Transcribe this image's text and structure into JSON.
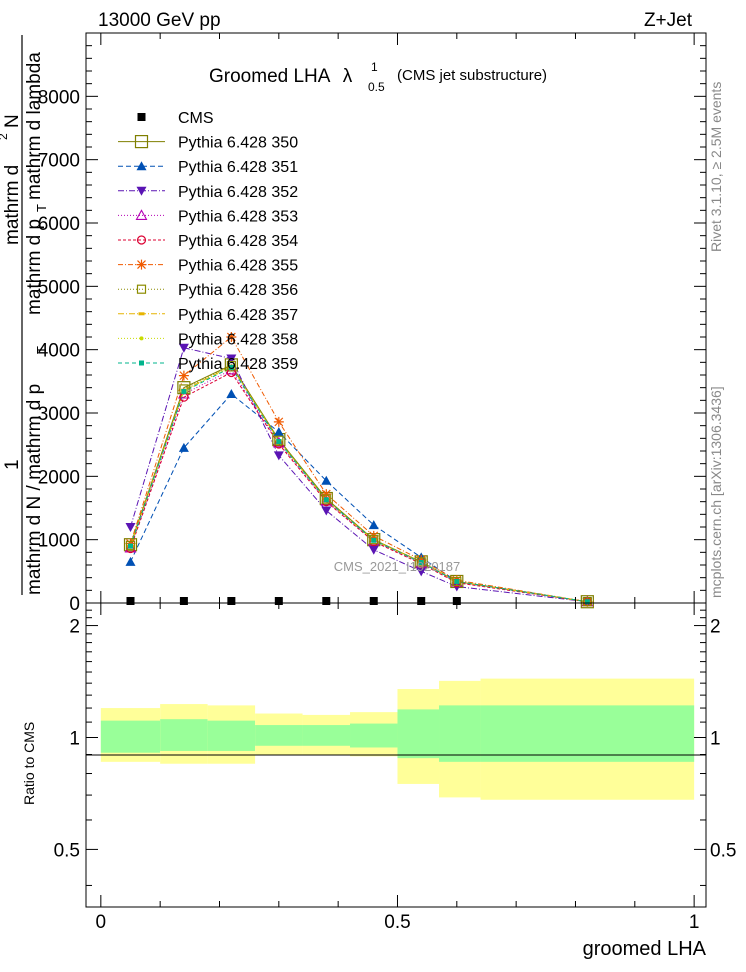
{
  "header": {
    "left": "13000 GeV pp",
    "right": "Z+Jet"
  },
  "side": {
    "rivet": "Rivet 3.1.10, ≥ 2.5M events",
    "mcplots": "mcplots.cern.ch [arXiv:1306.3436]"
  },
  "watermark": "CMS_2021_I1920187",
  "chart_data": {
    "type": "line",
    "title_main": "Groomed LHA",
    "title_lambda": "λ",
    "title_sup": "1",
    "title_sub": "0.5",
    "title_note": "(CMS jet substructure)",
    "ylabel_parts": [
      "1",
      "mathrm d N / mathrm d p",
      "T",
      "mathrm d",
      "2",
      "N",
      "mathrm d p",
      "T",
      "mathrm d lambda"
    ],
    "xlabel": "groomed LHA",
    "ratio_ylabel": "Ratio to CMS",
    "xlim": [
      -0.025,
      1.02
    ],
    "ylim": [
      0,
      9000
    ],
    "ratio_ylim": [
      0.35,
      2.3
    ],
    "x_ticks": [
      0,
      0.5,
      1
    ],
    "x_tick_labels": [
      "0",
      "0.5",
      "1"
    ],
    "y_ticks": [
      0,
      1000,
      2000,
      3000,
      4000,
      5000,
      6000,
      7000,
      8000
    ],
    "y_tick_labels": [
      "0",
      "1000",
      "2000",
      "3000",
      "4000",
      "5000",
      "6000",
      "7000",
      "8000"
    ],
    "ratio_ticks": [
      0.5,
      1,
      2
    ],
    "ratio_tick_labels": [
      "0.5",
      "1",
      "2"
    ],
    "x": [
      0.05,
      0.14,
      0.22,
      0.3,
      0.38,
      0.46,
      0.54,
      0.6,
      0.82
    ],
    "band_edges": [
      0,
      0.1,
      0.18,
      0.26,
      0.34,
      0.42,
      0.5,
      0.57,
      0.64,
      1.0
    ],
    "band_inner": [
      [
        0.91,
        1.11
      ],
      [
        0.92,
        1.12
      ],
      [
        0.92,
        1.11
      ],
      [
        0.95,
        1.08
      ],
      [
        0.95,
        1.08
      ],
      [
        0.94,
        1.09
      ],
      [
        0.88,
        1.19
      ],
      [
        0.86,
        1.22
      ],
      [
        0.86,
        1.22
      ]
    ],
    "band_outer": [
      [
        0.86,
        1.2
      ],
      [
        0.85,
        1.23
      ],
      [
        0.85,
        1.22
      ],
      [
        0.9,
        1.16
      ],
      [
        0.9,
        1.15
      ],
      [
        0.89,
        1.17
      ],
      [
        0.75,
        1.35
      ],
      [
        0.69,
        1.42
      ],
      [
        0.68,
        1.44
      ]
    ],
    "legend_position": "top-left",
    "series": [
      {
        "name": "CMS",
        "color": "#000000",
        "marker": "square-filled",
        "dash": "none",
        "values": [
          0,
          0,
          0,
          0,
          0,
          0,
          0,
          0,
          0
        ]
      },
      {
        "name": "Pythia 6.428 350",
        "color": "#7f7f00",
        "marker": "square-open-big",
        "dash": "solid",
        "values": [
          920,
          3400,
          3760,
          2580,
          1650,
          1000,
          650,
          340,
          20
        ]
      },
      {
        "name": "Pythia 6.428 351",
        "color": "#0050b4",
        "marker": "triangle-up-filled",
        "dash": "5,3",
        "values": [
          650,
          2450,
          3300,
          2700,
          1930,
          1230,
          720,
          340,
          20
        ]
      },
      {
        "name": "Pythia 6.428 352",
        "color": "#5a14b4",
        "marker": "triangle-down-filled",
        "dash": "6,2,1,2",
        "values": [
          1200,
          4030,
          3860,
          2330,
          1460,
          840,
          500,
          260,
          20
        ]
      },
      {
        "name": "Pythia 6.428 353",
        "color": "#b400b4",
        "marker": "triangle-up-open",
        "dash": "1,2",
        "values": [
          870,
          3300,
          3680,
          2530,
          1610,
          980,
          630,
          330,
          20
        ]
      },
      {
        "name": "Pythia 6.428 354",
        "color": "#dc0032",
        "marker": "circle-open",
        "dash": "3,2",
        "values": [
          860,
          3250,
          3640,
          2510,
          1600,
          970,
          620,
          320,
          20
        ]
      },
      {
        "name": "Pythia 6.428 355",
        "color": "#f05a00",
        "marker": "star",
        "dash": "5,2,1,2",
        "values": [
          940,
          3590,
          4200,
          2860,
          1720,
          1060,
          680,
          360,
          20
        ]
      },
      {
        "name": "Pythia 6.428 356",
        "color": "#8c8c00",
        "marker": "square-open",
        "dash": "1,2",
        "values": [
          910,
          3380,
          3750,
          2570,
          1640,
          1000,
          650,
          340,
          20
        ]
      },
      {
        "name": "Pythia 6.428 357",
        "color": "#e6b400",
        "marker": "dash",
        "dash": "6,2,1,2",
        "values": [
          900,
          3360,
          3740,
          2560,
          1630,
          990,
          650,
          340,
          20
        ]
      },
      {
        "name": "Pythia 6.428 358",
        "color": "#c8dc00",
        "marker": "dot",
        "dash": "1,2",
        "values": [
          900,
          3350,
          3730,
          2560,
          1630,
          990,
          640,
          340,
          20
        ]
      },
      {
        "name": "Pythia 6.428 359",
        "color": "#00b48c",
        "marker": "square-filled-small",
        "dash": "4,3",
        "values": [
          900,
          3340,
          3720,
          2550,
          1630,
          990,
          640,
          340,
          20
        ]
      }
    ]
  }
}
